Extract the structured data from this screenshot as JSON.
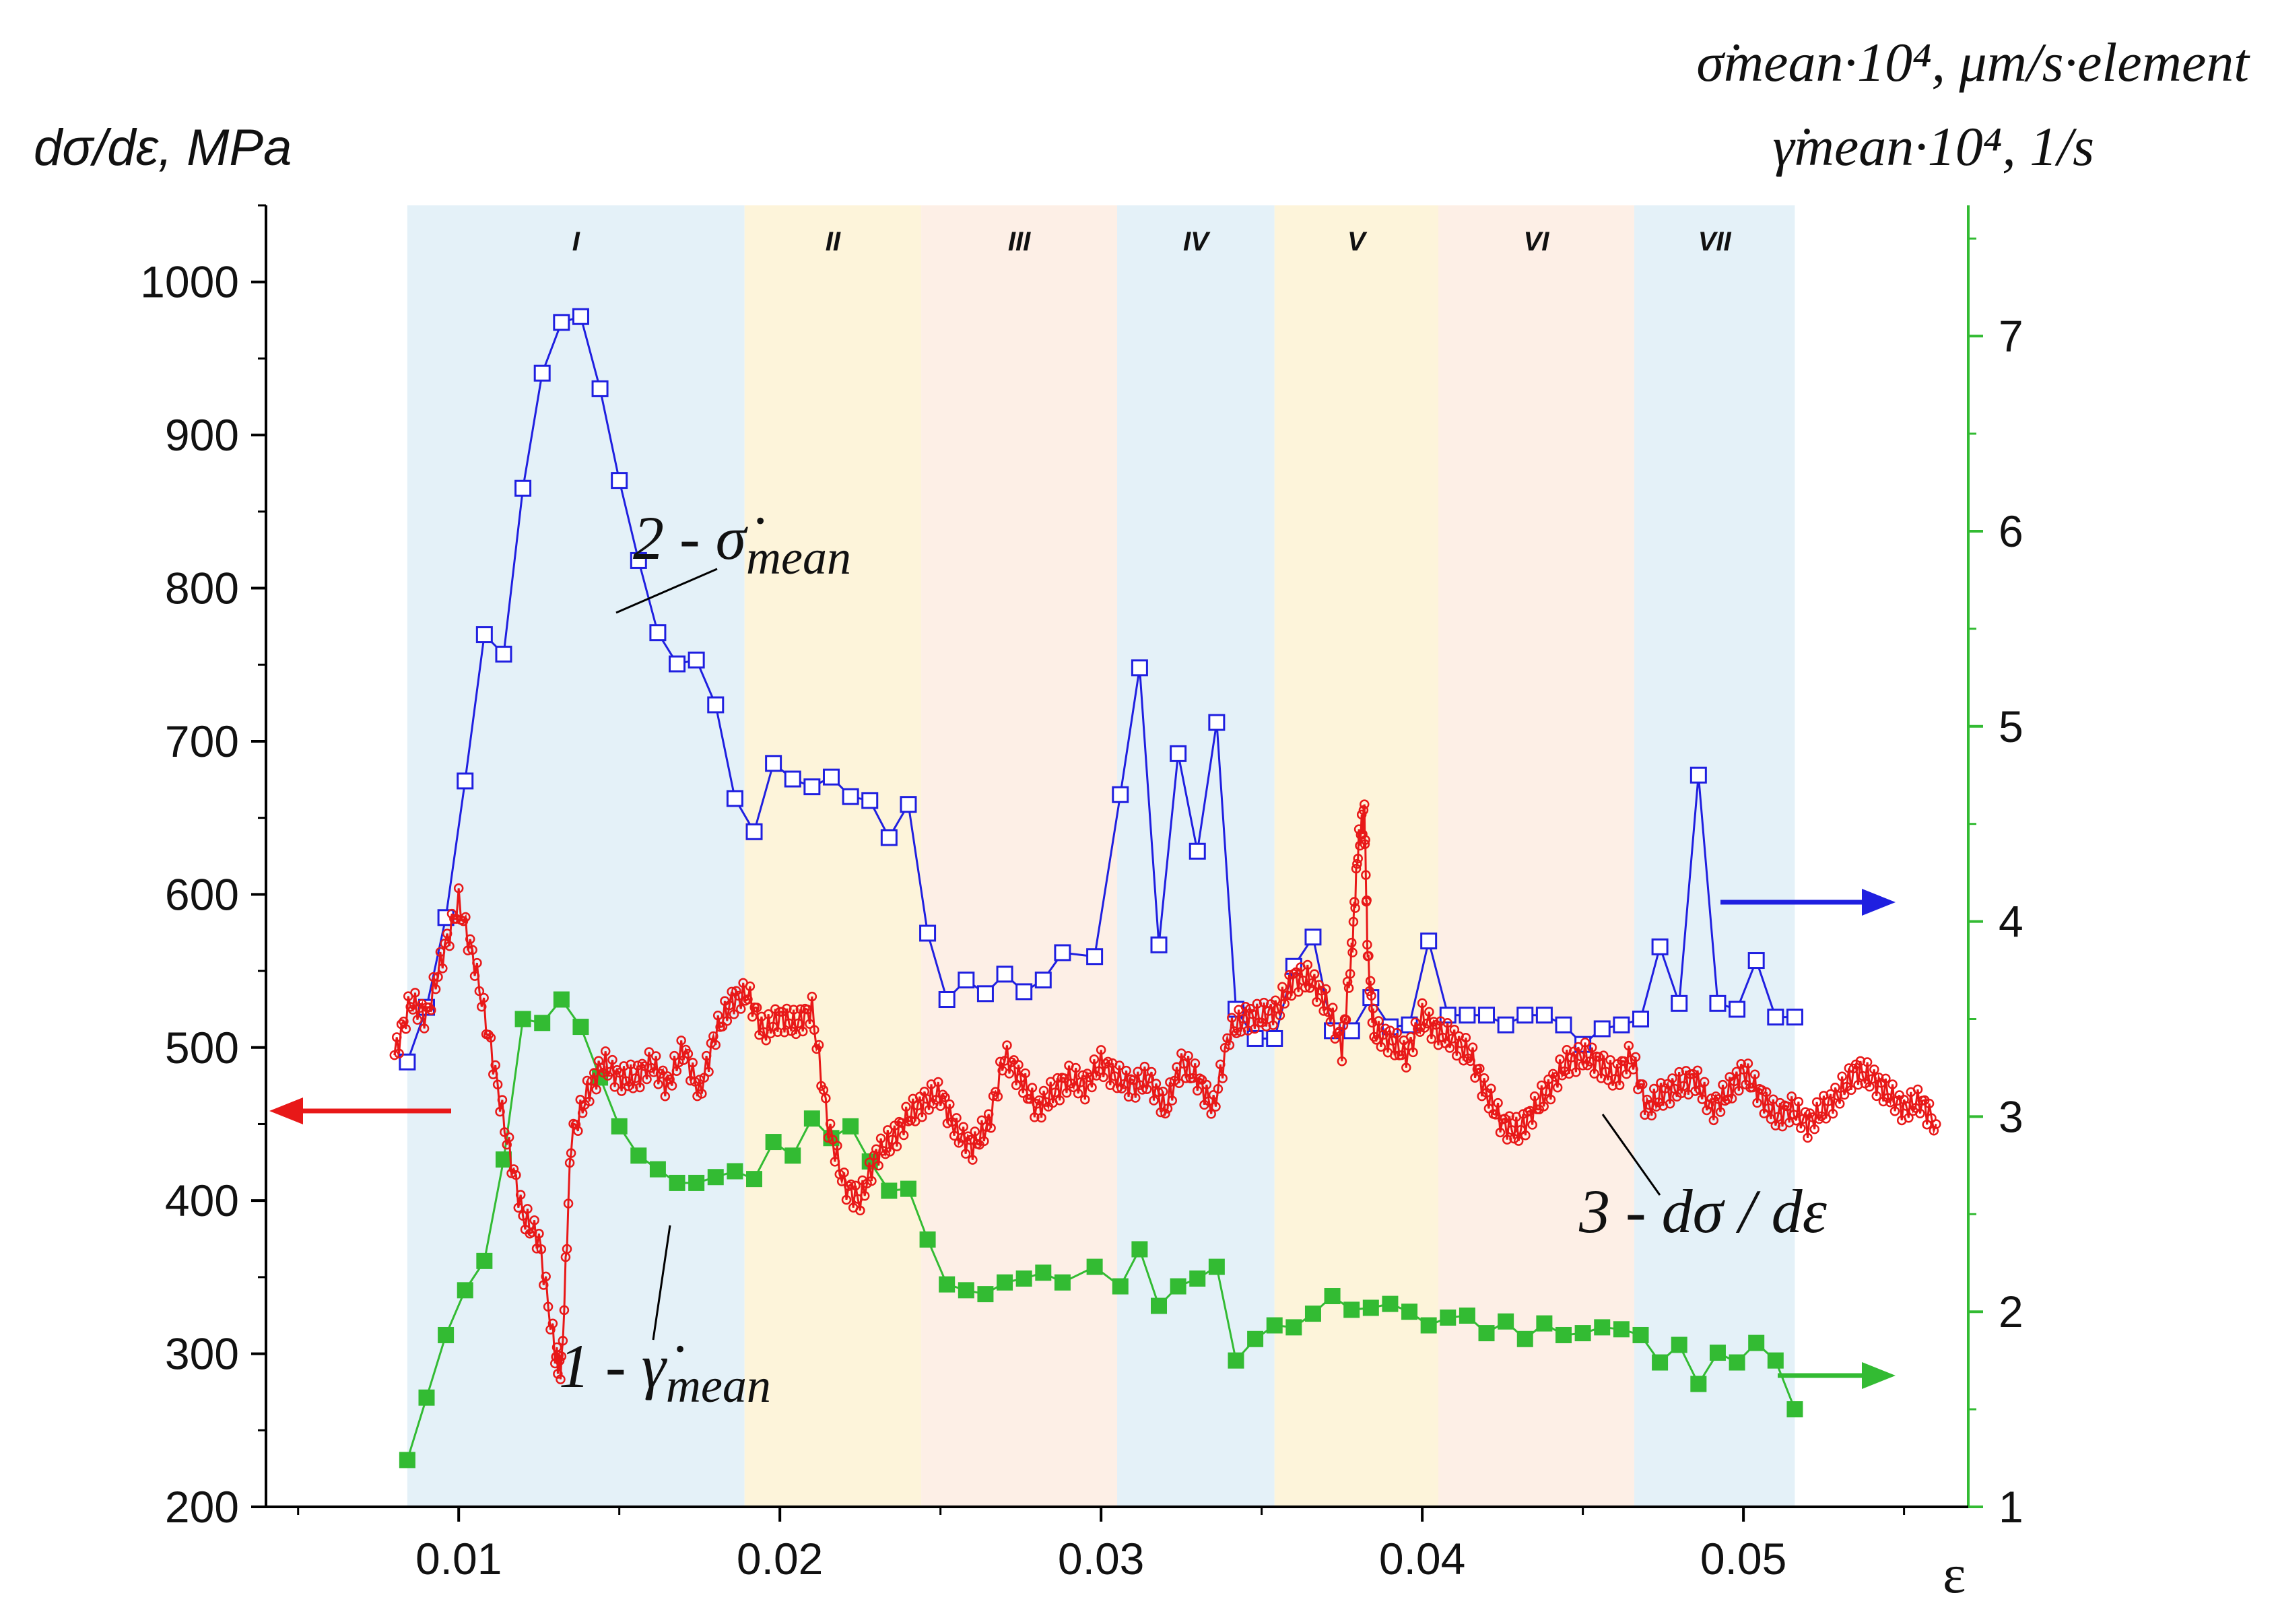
{
  "chart_data": {
    "type": "line",
    "title": "",
    "xlabel": "ε",
    "ylabel_left": "dσ/dε, MPa",
    "ylabel_right_line1": "σ̇mean·10⁴, μm/s·element",
    "ylabel_right_line2": "γ̇mean·10⁴, 1/s",
    "xlim": [
      0.004,
      0.057
    ],
    "ylim_left": [
      200,
      1050
    ],
    "ylim_right": [
      1,
      7.67
    ],
    "x_ticks": [
      0.01,
      0.02,
      0.03,
      0.04,
      0.05
    ],
    "x_tick_labels": [
      "0.01",
      "0.02",
      "0.03",
      "0.04",
      "0.05"
    ],
    "y_left_ticks": [
      200,
      300,
      400,
      500,
      600,
      700,
      800,
      900,
      1000
    ],
    "y_left_tick_labels": [
      "200",
      "300",
      "400",
      "500",
      "600",
      "700",
      "800",
      "900",
      "1000"
    ],
    "y_right_ticks": [
      1,
      2,
      3,
      4,
      5,
      6,
      7
    ],
    "y_right_tick_labels": [
      "1",
      "2",
      "3",
      "4",
      "5",
      "6",
      "7"
    ],
    "regions": [
      {
        "label": "I",
        "from": 0.0084,
        "to": 0.0189,
        "color": "#e4f1f8"
      },
      {
        "label": "II",
        "from": 0.0189,
        "to": 0.0244,
        "color": "#fdf4da"
      },
      {
        "label": "III",
        "from": 0.0244,
        "to": 0.0305,
        "color": "#fdefe6"
      },
      {
        "label": "IV",
        "from": 0.0305,
        "to": 0.0354,
        "color": "#e4f1f8"
      },
      {
        "label": "V",
        "from": 0.0354,
        "to": 0.0405,
        "color": "#fdf4da"
      },
      {
        "label": "VI",
        "from": 0.0405,
        "to": 0.0466,
        "color": "#fdefe6"
      },
      {
        "label": "VII",
        "from": 0.0466,
        "to": 0.0516,
        "color": "#e4f1f8"
      }
    ],
    "series": [
      {
        "name": "2 - σ̇mean",
        "axis": "right",
        "color": "#1f1fe0",
        "marker": "open-square",
        "x": [
          0.0084,
          0.009,
          0.0096,
          0.0102,
          0.0108,
          0.0114,
          0.012,
          0.0126,
          0.0132,
          0.0138,
          0.0144,
          0.015,
          0.0156,
          0.0162,
          0.0168,
          0.0174,
          0.018,
          0.0186,
          0.0192,
          0.0198,
          0.0204,
          0.021,
          0.0216,
          0.0222,
          0.0228,
          0.0234,
          0.024,
          0.0246,
          0.0252,
          0.0258,
          0.0264,
          0.027,
          0.0276,
          0.0282,
          0.0288,
          0.0298,
          0.0306,
          0.0312,
          0.0318,
          0.0324,
          0.033,
          0.0336,
          0.0342,
          0.0348,
          0.0354,
          0.036,
          0.0366,
          0.0372,
          0.0378,
          0.0384,
          0.039,
          0.0396,
          0.0402,
          0.0408,
          0.0414,
          0.042,
          0.0426,
          0.0432,
          0.0438,
          0.0444,
          0.045,
          0.0456,
          0.0462,
          0.0468,
          0.0474,
          0.048,
          0.0486,
          0.0492,
          0.0498,
          0.0504,
          0.051,
          0.0516
        ],
        "values": [
          3.28,
          3.56,
          4.02,
          4.72,
          5.47,
          5.37,
          6.22,
          6.81,
          7.07,
          7.1,
          6.73,
          6.26,
          5.85,
          5.48,
          5.32,
          5.34,
          5.11,
          4.63,
          4.46,
          4.81,
          4.73,
          4.69,
          4.74,
          4.64,
          4.62,
          4.43,
          4.6,
          3.94,
          3.6,
          3.7,
          3.63,
          3.73,
          3.64,
          3.7,
          3.84,
          3.82,
          4.65,
          5.3,
          3.88,
          4.86,
          4.36,
          5.02,
          3.55,
          3.4,
          3.4,
          3.77,
          3.92,
          3.44,
          3.44,
          3.61,
          3.46,
          3.47,
          3.9,
          3.52,
          3.52,
          3.52,
          3.47,
          3.52,
          3.52,
          3.47,
          3.37,
          3.45,
          3.47,
          3.5,
          3.87,
          3.58,
          4.75,
          3.58,
          3.55,
          3.8,
          3.51,
          3.51
        ]
      },
      {
        "name": "1 - γ̇mean",
        "axis": "right",
        "color": "#33bb33",
        "marker": "filled-square",
        "x": [
          0.0084,
          0.009,
          0.0096,
          0.0102,
          0.0108,
          0.0114,
          0.012,
          0.0126,
          0.0132,
          0.0138,
          0.0144,
          0.015,
          0.0156,
          0.0162,
          0.0168,
          0.0174,
          0.018,
          0.0186,
          0.0192,
          0.0198,
          0.0204,
          0.021,
          0.0216,
          0.0222,
          0.0228,
          0.0234,
          0.024,
          0.0246,
          0.0252,
          0.0258,
          0.0264,
          0.027,
          0.0276,
          0.0282,
          0.0288,
          0.0298,
          0.0306,
          0.0312,
          0.0318,
          0.0324,
          0.033,
          0.0336,
          0.0342,
          0.0348,
          0.0354,
          0.036,
          0.0366,
          0.0372,
          0.0378,
          0.0384,
          0.039,
          0.0396,
          0.0402,
          0.0408,
          0.0414,
          0.042,
          0.0426,
          0.0432,
          0.0438,
          0.0444,
          0.045,
          0.0456,
          0.0462,
          0.0468,
          0.0474,
          0.048,
          0.0486,
          0.0492,
          0.0498,
          0.0504,
          0.051,
          0.0516
        ],
        "values": [
          1.24,
          1.56,
          1.88,
          2.11,
          2.26,
          2.78,
          3.5,
          3.48,
          3.6,
          3.46,
          3.2,
          2.95,
          2.8,
          2.73,
          2.66,
          2.66,
          2.69,
          2.72,
          2.68,
          2.87,
          2.8,
          2.99,
          2.89,
          2.95,
          2.77,
          2.62,
          2.63,
          2.37,
          2.14,
          2.11,
          2.09,
          2.15,
          2.17,
          2.2,
          2.15,
          2.23,
          2.13,
          2.32,
          2.03,
          2.13,
          2.17,
          2.23,
          1.75,
          1.86,
          1.93,
          1.92,
          1.99,
          2.08,
          2.01,
          2.02,
          2.04,
          2.0,
          1.93,
          1.97,
          1.98,
          1.89,
          1.95,
          1.86,
          1.94,
          1.88,
          1.89,
          1.92,
          1.91,
          1.88,
          1.74,
          1.83,
          1.63,
          1.79,
          1.74,
          1.84,
          1.75,
          1.5
        ]
      },
      {
        "name": "3 - dσ/dε",
        "axis": "left",
        "color": "#e81818",
        "marker": "open-circle-small",
        "x": [
          0.008,
          0.0085,
          0.009,
          0.0095,
          0.01,
          0.0105,
          0.011,
          0.0115,
          0.012,
          0.0125,
          0.013,
          0.0132,
          0.0135,
          0.014,
          0.0145,
          0.015,
          0.0155,
          0.016,
          0.0165,
          0.017,
          0.0175,
          0.018,
          0.0185,
          0.019,
          0.0195,
          0.02,
          0.0205,
          0.021,
          0.0215,
          0.022,
          0.0225,
          0.023,
          0.0235,
          0.024,
          0.0245,
          0.025,
          0.0255,
          0.026,
          0.0265,
          0.027,
          0.0275,
          0.028,
          0.0285,
          0.029,
          0.0295,
          0.03,
          0.0305,
          0.031,
          0.0315,
          0.032,
          0.0325,
          0.033,
          0.0335,
          0.034,
          0.0345,
          0.035,
          0.0355,
          0.036,
          0.0365,
          0.037,
          0.0375,
          0.0378,
          0.038,
          0.0382,
          0.0383,
          0.0385,
          0.039,
          0.0395,
          0.04,
          0.0405,
          0.041,
          0.0415,
          0.042,
          0.0425,
          0.043,
          0.0435,
          0.044,
          0.0445,
          0.045,
          0.0455,
          0.046,
          0.0465,
          0.047,
          0.0475,
          0.048,
          0.0485,
          0.049,
          0.0495,
          0.05,
          0.0505,
          0.051,
          0.0515,
          0.052,
          0.0525,
          0.053,
          0.0535,
          0.054,
          0.0545,
          0.055,
          0.0555,
          0.056
        ],
        "values": [
          495,
          530,
          520,
          560,
          595,
          555,
          500,
          440,
          390,
          375,
          300,
          290,
          440,
          470,
          490,
          480,
          480,
          490,
          475,
          500,
          470,
          510,
          530,
          535,
          510,
          520,
          515,
          525,
          450,
          410,
          400,
          430,
          440,
          455,
          465,
          470,
          445,
          435,
          450,
          495,
          480,
          460,
          470,
          480,
          475,
          490,
          480,
          475,
          480,
          460,
          490,
          480,
          460,
          510,
          520,
          520,
          525,
          545,
          545,
          530,
          500,
          560,
          630,
          655,
          560,
          510,
          505,
          495,
          520,
          510,
          505,
          495,
          470,
          450,
          445,
          460,
          475,
          490,
          495,
          490,
          480,
          495,
          460,
          470,
          475,
          480,
          460,
          470,
          485,
          470,
          455,
          460,
          450,
          460,
          470,
          485,
          480,
          470,
          460,
          465,
          450
        ]
      }
    ],
    "annotations": [
      {
        "label_prefix": "2 - ",
        "symbol": "σ̇",
        "sub": "mean"
      },
      {
        "label_prefix": "1 - ",
        "symbol": "γ̇",
        "sub": "mean"
      },
      {
        "label_prefix": "3 - ",
        "symbol": "dσ / dε",
        "sub": ""
      }
    ]
  }
}
